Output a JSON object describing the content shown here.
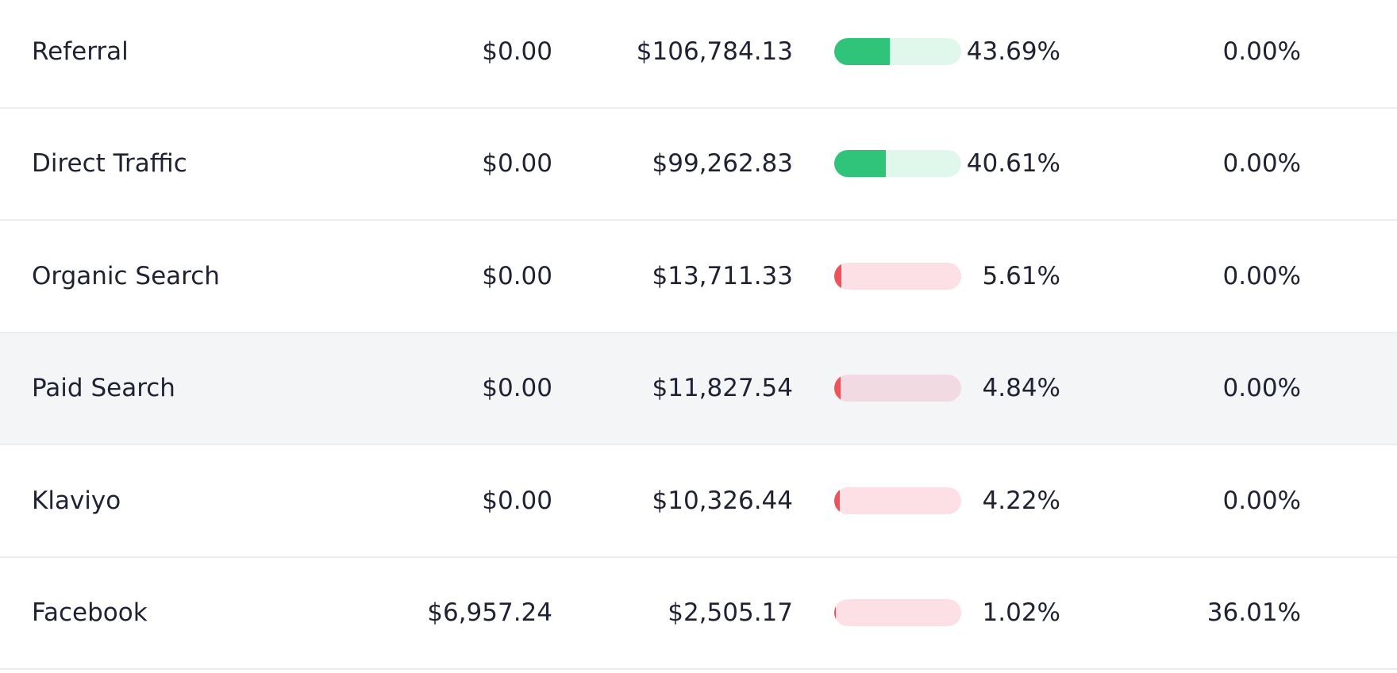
{
  "rows": [
    {
      "source": "Referral",
      "spend": "$0.00",
      "revenue": "$106,784.13",
      "share": {
        "value": 43.69,
        "label": "43.69%"
      },
      "rate": "0.00%",
      "bar_color": "#2fc47a",
      "track_color": "#e0f7ec"
    },
    {
      "source": "Direct Traffic",
      "spend": "$0.00",
      "revenue": "$99,262.83",
      "share": {
        "value": 40.61,
        "label": "40.61%"
      },
      "rate": "0.00%",
      "bar_color": "#2fc47a",
      "track_color": "#e0f7ec"
    },
    {
      "source": "Organic Search",
      "spend": "$0.00",
      "revenue": "$13,711.33",
      "share": {
        "value": 5.61,
        "label": "5.61%"
      },
      "rate": "0.00%",
      "bar_color": "#f0525a",
      "track_color": "#fde0e6"
    },
    {
      "source": "Paid Search",
      "spend": "$0.00",
      "revenue": "$11,827.54",
      "share": {
        "value": 4.84,
        "label": "4.84%"
      },
      "rate": "0.00%",
      "bar_color": "#f0525a",
      "track_color": "#f2dae2",
      "row_color": "#f4f5f7"
    },
    {
      "source": "Klaviyo",
      "spend": "$0.00",
      "revenue": "$10,326.44",
      "share": {
        "value": 4.22,
        "label": "4.22%"
      },
      "rate": "0.00%",
      "bar_color": "#f0525a",
      "track_color": "#fde0e6"
    },
    {
      "source": "Facebook",
      "spend": "$6,957.24",
      "revenue": "$2,505.17",
      "share": {
        "value": 1.02,
        "label": "1.02%"
      },
      "rate": "36.01%",
      "bar_color": "#f0525a",
      "track_color": "#fde0e6"
    }
  ]
}
